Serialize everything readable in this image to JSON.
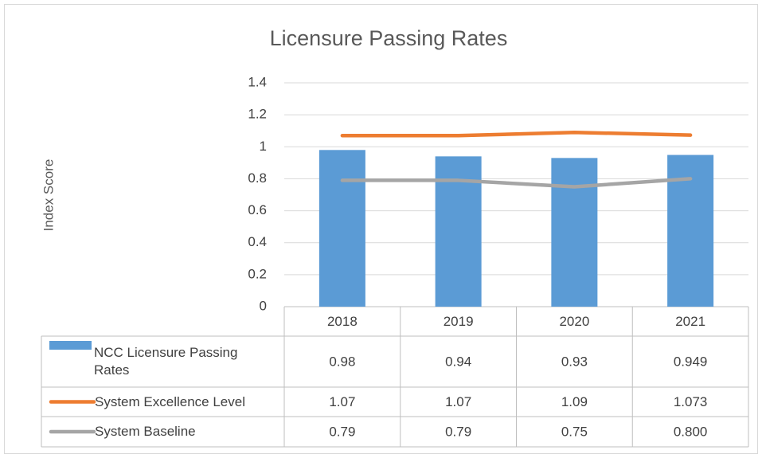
{
  "chart_data": {
    "type": "bar_line_table",
    "title": "Licensure Passing Rates",
    "y_label": "Index Score",
    "categories": [
      "2018",
      "2019",
      "2020",
      "2021"
    ],
    "series": [
      {
        "name": "NCC Licensure Passing Rates",
        "type": "bar",
        "color": "#5b9bd5",
        "values": [
          0.98,
          0.94,
          0.93,
          0.949
        ]
      },
      {
        "name": "System Excellence Level",
        "type": "line",
        "color": "#ed7d31",
        "values": [
          1.07,
          1.07,
          1.09,
          1.073
        ]
      },
      {
        "name": "System Baseline",
        "type": "line",
        "color": "#a5a5a5",
        "values": [
          0.79,
          0.79,
          0.75,
          0.8
        ],
        "value_labels": [
          "0.79",
          "0.79",
          "0.75",
          "0.800"
        ]
      }
    ],
    "ylim": [
      0,
      1.4
    ],
    "yticks": [
      0,
      0.2,
      0.4,
      0.6,
      0.8,
      1,
      1.2,
      1.4
    ],
    "grid": true
  }
}
